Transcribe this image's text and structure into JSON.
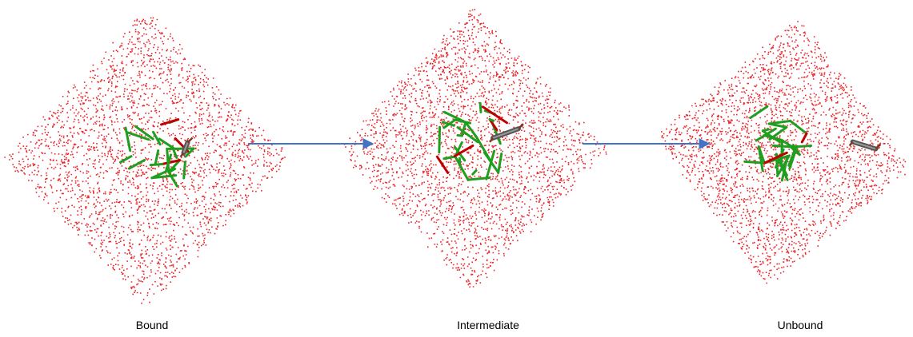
{
  "panels": [
    {
      "label": "Bound"
    },
    {
      "label": "Intermediate"
    },
    {
      "label": "Unbound"
    }
  ]
}
